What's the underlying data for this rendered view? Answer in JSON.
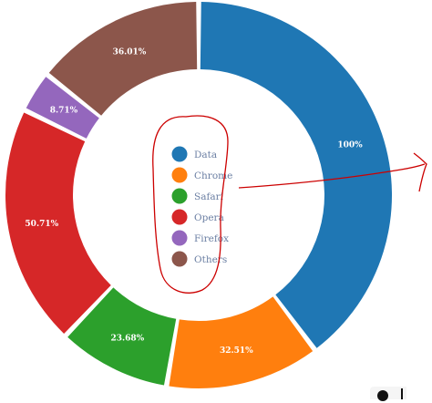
{
  "chart_data": {
    "type": "pie",
    "donut": true,
    "legend_position": "center",
    "categories": [
      "Data",
      "Chrome",
      "Safari",
      "Opera",
      "Firefox",
      "Others"
    ],
    "slice_labels": [
      "100%",
      "32.51%",
      "23.68%",
      "50.71%",
      "8.71%",
      "36.01%"
    ],
    "values": [
      100,
      32.51,
      23.68,
      50.71,
      8.71,
      36.01
    ],
    "colors": [
      "#1f77b4",
      "#ff7f0e",
      "#2ca02c",
      "#d62728",
      "#9467bd",
      "#8c564b"
    ]
  },
  "annotation": {
    "color": "#cc0000",
    "shapes": [
      "loop-around-legend",
      "arrow-pointing-right"
    ]
  }
}
